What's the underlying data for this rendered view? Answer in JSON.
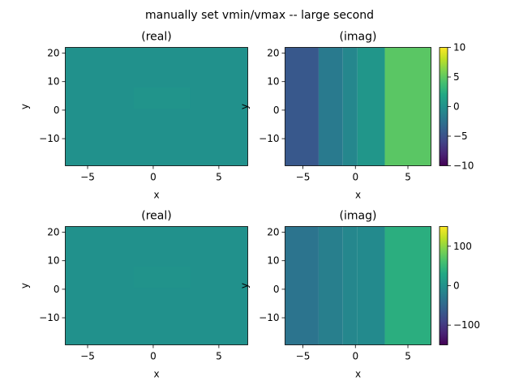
{
  "figure": {
    "title": "manually set vmin/vmax -- large second"
  },
  "colors": {
    "colormap": "viridis",
    "axis": "#000000",
    "background": "#ffffff"
  },
  "chart_data": [
    {
      "type": "heatmap",
      "title": "(real)",
      "xlabel": "x",
      "ylabel": "y",
      "xlim": [
        -6.7,
        7.2
      ],
      "ylim": [
        -19.5,
        22
      ],
      "xticks": [
        -5,
        0,
        5
      ],
      "yticks": [
        -10,
        0,
        10,
        20
      ],
      "vmin": -10,
      "vmax": 10,
      "colorbar": false,
      "cells": [
        {
          "x": [
            -6.7,
            7.2
          ],
          "y": [
            -19.5,
            22
          ],
          "value": 0.0
        },
        {
          "x": [
            -1.5,
            2.8
          ],
          "y": [
            0.5,
            8
          ],
          "value": 0.25
        }
      ]
    },
    {
      "type": "heatmap",
      "title": "(imag)",
      "xlabel": "x",
      "ylabel": "y",
      "xlim": [
        -6.7,
        7.2
      ],
      "ylim": [
        -19.5,
        22
      ],
      "xticks": [
        -5,
        0,
        5
      ],
      "yticks": [
        -10,
        0,
        10,
        20
      ],
      "vmin": -10,
      "vmax": 10,
      "colorbar": true,
      "colorbar_ticks": [
        -10,
        -5,
        0,
        5,
        10
      ],
      "cells": [
        {
          "x": [
            -6.7,
            -3.5
          ],
          "y": [
            -19.5,
            22
          ],
          "value": -4.5
        },
        {
          "x": [
            -3.5,
            -1.2
          ],
          "y": [
            -19.5,
            22
          ],
          "value": -1.8
        },
        {
          "x": [
            -1.2,
            0.2
          ],
          "y": [
            -19.5,
            22
          ],
          "value": -0.8
        },
        {
          "x": [
            0.2,
            2.8
          ],
          "y": [
            -19.5,
            22
          ],
          "value": 0.4
        },
        {
          "x": [
            2.8,
            7.2
          ],
          "y": [
            -19.5,
            22
          ],
          "value": 4.8
        }
      ]
    },
    {
      "type": "heatmap",
      "title": "(real)",
      "xlabel": "x",
      "ylabel": "y",
      "xlim": [
        -6.7,
        7.2
      ],
      "ylim": [
        -19.5,
        22
      ],
      "xticks": [
        -5,
        0,
        5
      ],
      "yticks": [
        -10,
        0,
        10,
        20
      ],
      "vmin": -150,
      "vmax": 150,
      "colorbar": false,
      "cells": [
        {
          "x": [
            -6.7,
            7.2
          ],
          "y": [
            -19.5,
            22
          ],
          "value": 0.0
        },
        {
          "x": [
            -1.5,
            2.8
          ],
          "y": [
            0.5,
            8
          ],
          "value": 3
        }
      ]
    },
    {
      "type": "heatmap",
      "title": "(imag)",
      "xlabel": "x",
      "ylabel": "y",
      "xlim": [
        -6.7,
        7.2
      ],
      "ylim": [
        -19.5,
        22
      ],
      "xticks": [
        -5,
        0,
        5
      ],
      "yticks": [
        -10,
        0,
        10,
        20
      ],
      "vmin": -150,
      "vmax": 150,
      "colorbar": true,
      "colorbar_ticks": [
        -100,
        0,
        100
      ],
      "cells": [
        {
          "x": [
            -6.7,
            -3.5
          ],
          "y": [
            -19.5,
            22
          ],
          "value": -35
        },
        {
          "x": [
            -3.5,
            -1.2
          ],
          "y": [
            -19.5,
            22
          ],
          "value": -22
        },
        {
          "x": [
            -1.2,
            0.2
          ],
          "y": [
            -19.5,
            22
          ],
          "value": -12
        },
        {
          "x": [
            0.2,
            2.8
          ],
          "y": [
            -19.5,
            22
          ],
          "value": -8
        },
        {
          "x": [
            2.8,
            7.2
          ],
          "y": [
            -19.5,
            22
          ],
          "value": 38
        }
      ]
    }
  ]
}
